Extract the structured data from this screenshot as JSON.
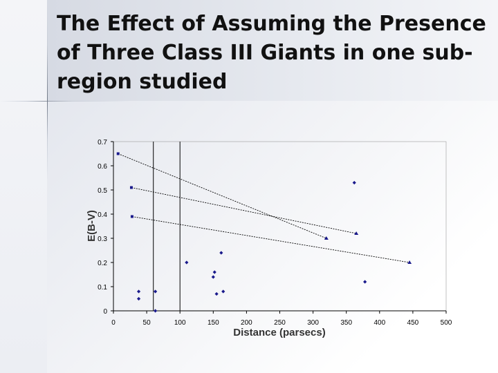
{
  "slide": {
    "title": "The Effect of Assuming the Presence of Three Class III Giants in one sub-region studied"
  },
  "chart_data": {
    "type": "scatter",
    "title": "",
    "xlabel": "Distance (parsecs)",
    "ylabel": "E(B-V)",
    "xlim": [
      0,
      500
    ],
    "ylim": [
      0,
      0.7
    ],
    "xticks": [
      "0",
      "50",
      "100",
      "150",
      "200",
      "250",
      "300",
      "350",
      "400",
      "450",
      "500"
    ],
    "yticks": [
      "0",
      "0.1",
      "0.2",
      "0.3",
      "0.4",
      "0.5",
      "0.6",
      "0.7"
    ],
    "grid": false,
    "legend": "none",
    "reference_lines_x": [
      60,
      100
    ],
    "series": [
      {
        "marker": "diamond",
        "points": [
          [
            38,
            0.08
          ],
          [
            38,
            0.05
          ],
          [
            63,
            0.08
          ],
          [
            63,
            0.0
          ],
          [
            110,
            0.2
          ],
          [
            150,
            0.14
          ],
          [
            152,
            0.16
          ],
          [
            155,
            0.07
          ],
          [
            162,
            0.24
          ],
          [
            165,
            0.08
          ],
          [
            362,
            0.53
          ],
          [
            378,
            0.12
          ]
        ]
      },
      {
        "marker": "square",
        "points": [
          [
            7,
            0.65
          ],
          [
            27,
            0.51
          ],
          [
            28,
            0.39
          ]
        ]
      },
      {
        "marker": "triangle",
        "points": [
          [
            320,
            0.3
          ],
          [
            365,
            0.32
          ],
          [
            445,
            0.2
          ]
        ]
      }
    ],
    "connectors": [
      {
        "from": [
          7,
          0.65
        ],
        "to": [
          320,
          0.3
        ]
      },
      {
        "from": [
          27,
          0.51
        ],
        "to": [
          365,
          0.32
        ]
      },
      {
        "from": [
          28,
          0.39
        ],
        "to": [
          445,
          0.2
        ]
      }
    ],
    "colors": {
      "marker": "#1a1a8c",
      "axis": "#000000",
      "text": "#000000"
    }
  }
}
